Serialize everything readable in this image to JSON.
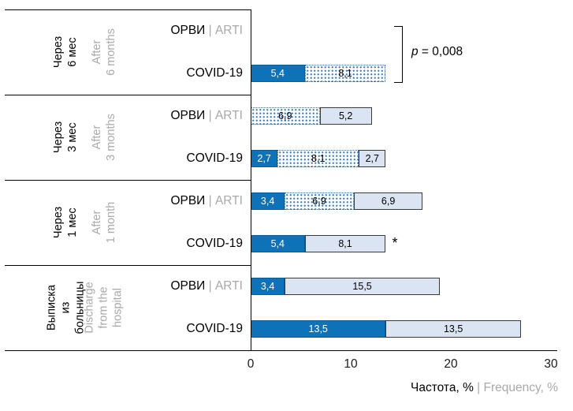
{
  "axis": {
    "title_primary": "Частота, %",
    "title_secondary": " | Frequency, %",
    "ticks": [
      "0",
      "10",
      "20",
      "30"
    ]
  },
  "annotations": {
    "p_label": "p",
    "p_rest": " = 0,008",
    "asterisk": "*"
  },
  "colors": {
    "solid_blue": "#0e72b9",
    "light_fill": "#dbe4f2",
    "dot_color": "#3a79b4",
    "secondary_text": "#a9a9a9",
    "axis_line": "#000000"
  },
  "chart_data": {
    "type": "bar",
    "orientation": "horizontal",
    "stacked": true,
    "xlabel": "Частота, % | Frequency, %",
    "x_ticks": [
      0,
      10,
      20,
      30
    ],
    "xlim": [
      0,
      30.6
    ],
    "groups": [
      {
        "period_ru": [
          "Через",
          "6 мес"
        ],
        "period_en": [
          "After",
          "6 months"
        ],
        "significance": "p = 0,008",
        "rows": [
          {
            "label_primary": "ОРВИ",
            "label_secondary": " | ARTI",
            "segments": []
          },
          {
            "label_primary": "COVID-19",
            "label_secondary": "",
            "segments": [
              {
                "style": "solid",
                "value": 5.4,
                "label": "5,4"
              },
              {
                "style": "dotted",
                "value": 8.1,
                "label": "8,1"
              }
            ]
          }
        ]
      },
      {
        "period_ru": [
          "Через",
          "3 мес"
        ],
        "period_en": [
          "After",
          "3 months"
        ],
        "rows": [
          {
            "label_primary": "ОРВИ",
            "label_secondary": " | ARTI",
            "segments": [
              {
                "style": "dotted",
                "value": 6.9,
                "label": "6,9"
              },
              {
                "style": "light",
                "value": 5.2,
                "label": "5,2"
              }
            ]
          },
          {
            "label_primary": "COVID-19",
            "label_secondary": "",
            "segments": [
              {
                "style": "solid",
                "value": 2.7,
                "label": "2,7"
              },
              {
                "style": "dotted",
                "value": 8.1,
                "label": "8,1"
              },
              {
                "style": "light",
                "value": 2.7,
                "label": "2,7"
              }
            ]
          }
        ]
      },
      {
        "period_ru": [
          "Через",
          "1 мес"
        ],
        "period_en": [
          "After",
          "1 month"
        ],
        "rows": [
          {
            "label_primary": "ОРВИ",
            "label_secondary": " | ARTI",
            "segments": [
              {
                "style": "solid",
                "value": 3.4,
                "label": "3,4"
              },
              {
                "style": "dotted",
                "value": 6.9,
                "label": "6,9"
              },
              {
                "style": "light",
                "value": 6.9,
                "label": "6,9"
              }
            ]
          },
          {
            "label_primary": "COVID-19",
            "label_secondary": "",
            "suffix": "*",
            "segments": [
              {
                "style": "solid",
                "value": 5.4,
                "label": "5,4"
              },
              {
                "style": "light",
                "value": 8.1,
                "label": "8,1"
              }
            ]
          }
        ]
      },
      {
        "period_ru": [
          "Выписка",
          "из",
          "больницы"
        ],
        "period_en": [
          "Discharge",
          "from the",
          "hospital"
        ],
        "rows": [
          {
            "label_primary": "ОРВИ",
            "label_secondary": " | ARTI",
            "segments": [
              {
                "style": "solid",
                "value": 3.4,
                "label": "3,4"
              },
              {
                "style": "light",
                "value": 15.5,
                "label": "15,5"
              }
            ]
          },
          {
            "label_primary": "COVID-19",
            "label_secondary": "",
            "segments": [
              {
                "style": "solid",
                "value": 13.5,
                "label": "13,5"
              },
              {
                "style": "light",
                "value": 13.5,
                "label": "13,5"
              }
            ]
          }
        ]
      }
    ]
  }
}
